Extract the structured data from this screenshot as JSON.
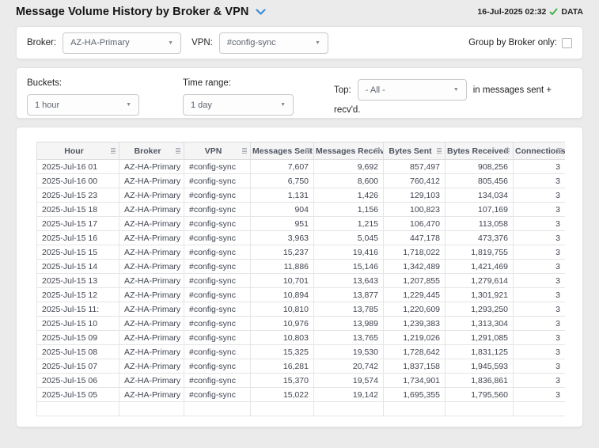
{
  "header": {
    "title": "Message Volume History by Broker & VPN",
    "timestamp": "16-Jul-2025 02:32",
    "status_label": "DATA"
  },
  "colors": {
    "accent_blue": "#3b8ed6",
    "success_green": "#45b14e",
    "page_background": "#ebebeb"
  },
  "icons": {
    "dropdown_arrow": "▼",
    "title_chevron": "chevron-down",
    "status_check": "check",
    "header_sort": "sort-lines"
  },
  "filters": {
    "broker_label": "Broker:",
    "broker_value": "AZ-HA-Primary",
    "vpn_label": "VPN:",
    "vpn_value": "#config-sync",
    "group_by_broker_label": "Group by Broker only:",
    "group_by_broker_checked": false,
    "buckets_label": "Buckets:",
    "buckets_value": "1 hour",
    "time_range_label": "Time range:",
    "time_range_value": "1 day",
    "top_label": "Top:",
    "top_value": "- All -",
    "top_suffix_line1": "in messages sent +",
    "top_suffix_line2": "recv'd."
  },
  "table": {
    "columns": [
      "Hour",
      "Broker",
      "VPN",
      "Messages Sent",
      "Messages Received",
      "Bytes Sent",
      "Bytes Received",
      "Connections"
    ],
    "rows": [
      [
        "2025-Jul-16 01",
        "AZ-HA-Primary",
        "#config-sync",
        "7,607",
        "9,692",
        "857,497",
        "908,256",
        "3"
      ],
      [
        "2025-Jul-16 00",
        "AZ-HA-Primary",
        "#config-sync",
        "6,750",
        "8,600",
        "760,412",
        "805,456",
        "3"
      ],
      [
        "2025-Jul-15 23",
        "AZ-HA-Primary",
        "#config-sync",
        "1,131",
        "1,426",
        "129,103",
        "134,034",
        "3"
      ],
      [
        "2025-Jul-15 18",
        "AZ-HA-Primary",
        "#config-sync",
        "904",
        "1,156",
        "100,823",
        "107,169",
        "3"
      ],
      [
        "2025-Jul-15 17",
        "AZ-HA-Primary",
        "#config-sync",
        "951",
        "1,215",
        "106,470",
        "113,058",
        "3"
      ],
      [
        "2025-Jul-15 16",
        "AZ-HA-Primary",
        "#config-sync",
        "3,963",
        "5,045",
        "447,178",
        "473,376",
        "3"
      ],
      [
        "2025-Jul-15 15",
        "AZ-HA-Primary",
        "#config-sync",
        "15,237",
        "19,416",
        "1,718,022",
        "1,819,755",
        "3"
      ],
      [
        "2025-Jul-15 14",
        "AZ-HA-Primary",
        "#config-sync",
        "11,886",
        "15,146",
        "1,342,489",
        "1,421,469",
        "3"
      ],
      [
        "2025-Jul-15 13",
        "AZ-HA-Primary",
        "#config-sync",
        "10,701",
        "13,643",
        "1,207,855",
        "1,279,614",
        "3"
      ],
      [
        "2025-Jul-15 12",
        "AZ-HA-Primary",
        "#config-sync",
        "10,894",
        "13,877",
        "1,229,445",
        "1,301,921",
        "3"
      ],
      [
        "2025-Jul-15 11:",
        "AZ-HA-Primary",
        "#config-sync",
        "10,810",
        "13,785",
        "1,220,609",
        "1,293,250",
        "3"
      ],
      [
        "2025-Jul-15 10",
        "AZ-HA-Primary",
        "#config-sync",
        "10,976",
        "13,989",
        "1,239,383",
        "1,313,304",
        "3"
      ],
      [
        "2025-Jul-15 09",
        "AZ-HA-Primary",
        "#config-sync",
        "10,803",
        "13,765",
        "1,219,026",
        "1,291,085",
        "3"
      ],
      [
        "2025-Jul-15 08",
        "AZ-HA-Primary",
        "#config-sync",
        "15,325",
        "19,530",
        "1,728,642",
        "1,831,125",
        "3"
      ],
      [
        "2025-Jul-15 07",
        "AZ-HA-Primary",
        "#config-sync",
        "16,281",
        "20,742",
        "1,837,158",
        "1,945,593",
        "3"
      ],
      [
        "2025-Jul-15 06",
        "AZ-HA-Primary",
        "#config-sync",
        "15,370",
        "19,574",
        "1,734,901",
        "1,836,861",
        "3"
      ],
      [
        "2025-Jul-15 05",
        "AZ-HA-Primary",
        "#config-sync",
        "15,022",
        "19,142",
        "1,695,355",
        "1,795,560",
        "3"
      ]
    ]
  }
}
